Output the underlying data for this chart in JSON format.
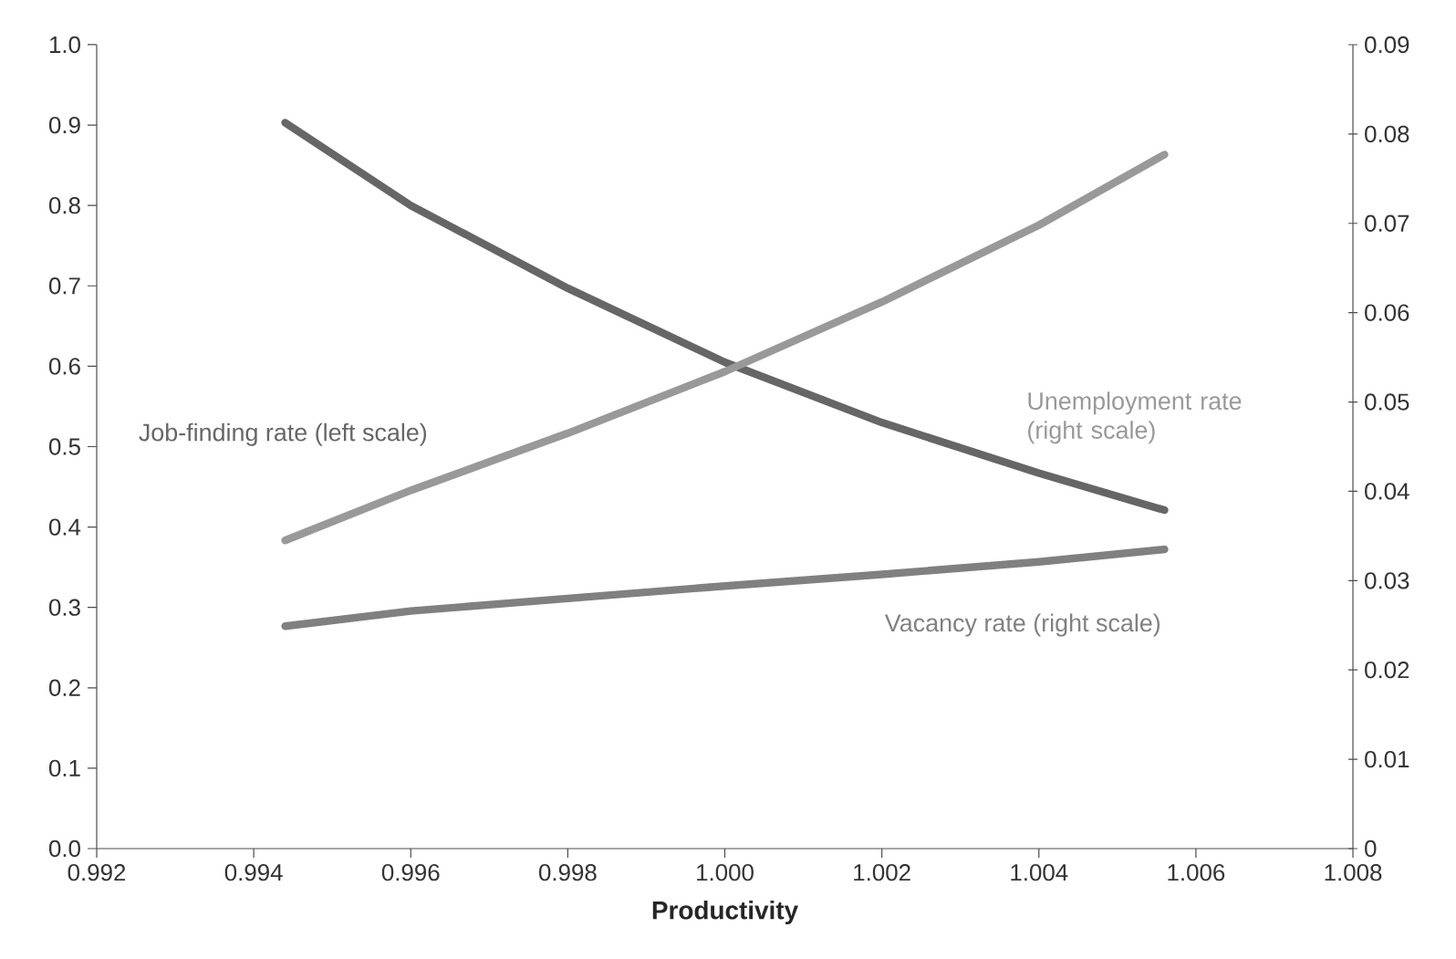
{
  "chart_data": {
    "type": "line",
    "xlabel": "Productivity",
    "x": [
      0.9944,
      0.996,
      0.998,
      1.0,
      1.002,
      1.004,
      1.0056
    ],
    "series": [
      {
        "name": "Job-finding rate (left scale)",
        "color": "#666666",
        "values": [
          0.903,
          0.8,
          0.697,
          0.605,
          0.53,
          0.467,
          0.421
        ]
      },
      {
        "name": "Unemployment rate (right scale)",
        "color": "#999999",
        "axis": "y2",
        "values": [
          0.0345,
          0.0401,
          0.0465,
          0.0534,
          0.0612,
          0.0698,
          0.0777
        ]
      },
      {
        "name": "Vacancy rate (right scale)",
        "color": "#808080",
        "axis": "y2",
        "values": [
          0.0249,
          0.0266,
          0.028,
          0.0294,
          0.0307,
          0.0321,
          0.0335
        ]
      }
    ],
    "xlim": [
      0.992,
      1.008
    ],
    "xticks": [
      0.992,
      0.994,
      0.996,
      0.998,
      {
        "value": 1.0,
        "label": "1.000"
      },
      1.002,
      1.004,
      1.006,
      1.008
    ],
    "ylim": [
      0,
      1.0
    ],
    "yticks": [
      {
        "value": 0,
        "label": "0.0"
      },
      0.1,
      0.2,
      0.3,
      0.4,
      0.5,
      0.6,
      0.7,
      0.8,
      0.9,
      {
        "value": 1.0,
        "label": "1.0"
      }
    ],
    "y2lim": [
      0,
      0.09
    ],
    "y2ticks": [
      0,
      0.01,
      0.02,
      0.03,
      0.04,
      0.05,
      0.06,
      0.07,
      0.08,
      0.09
    ],
    "grid": false,
    "legend": false
  }
}
